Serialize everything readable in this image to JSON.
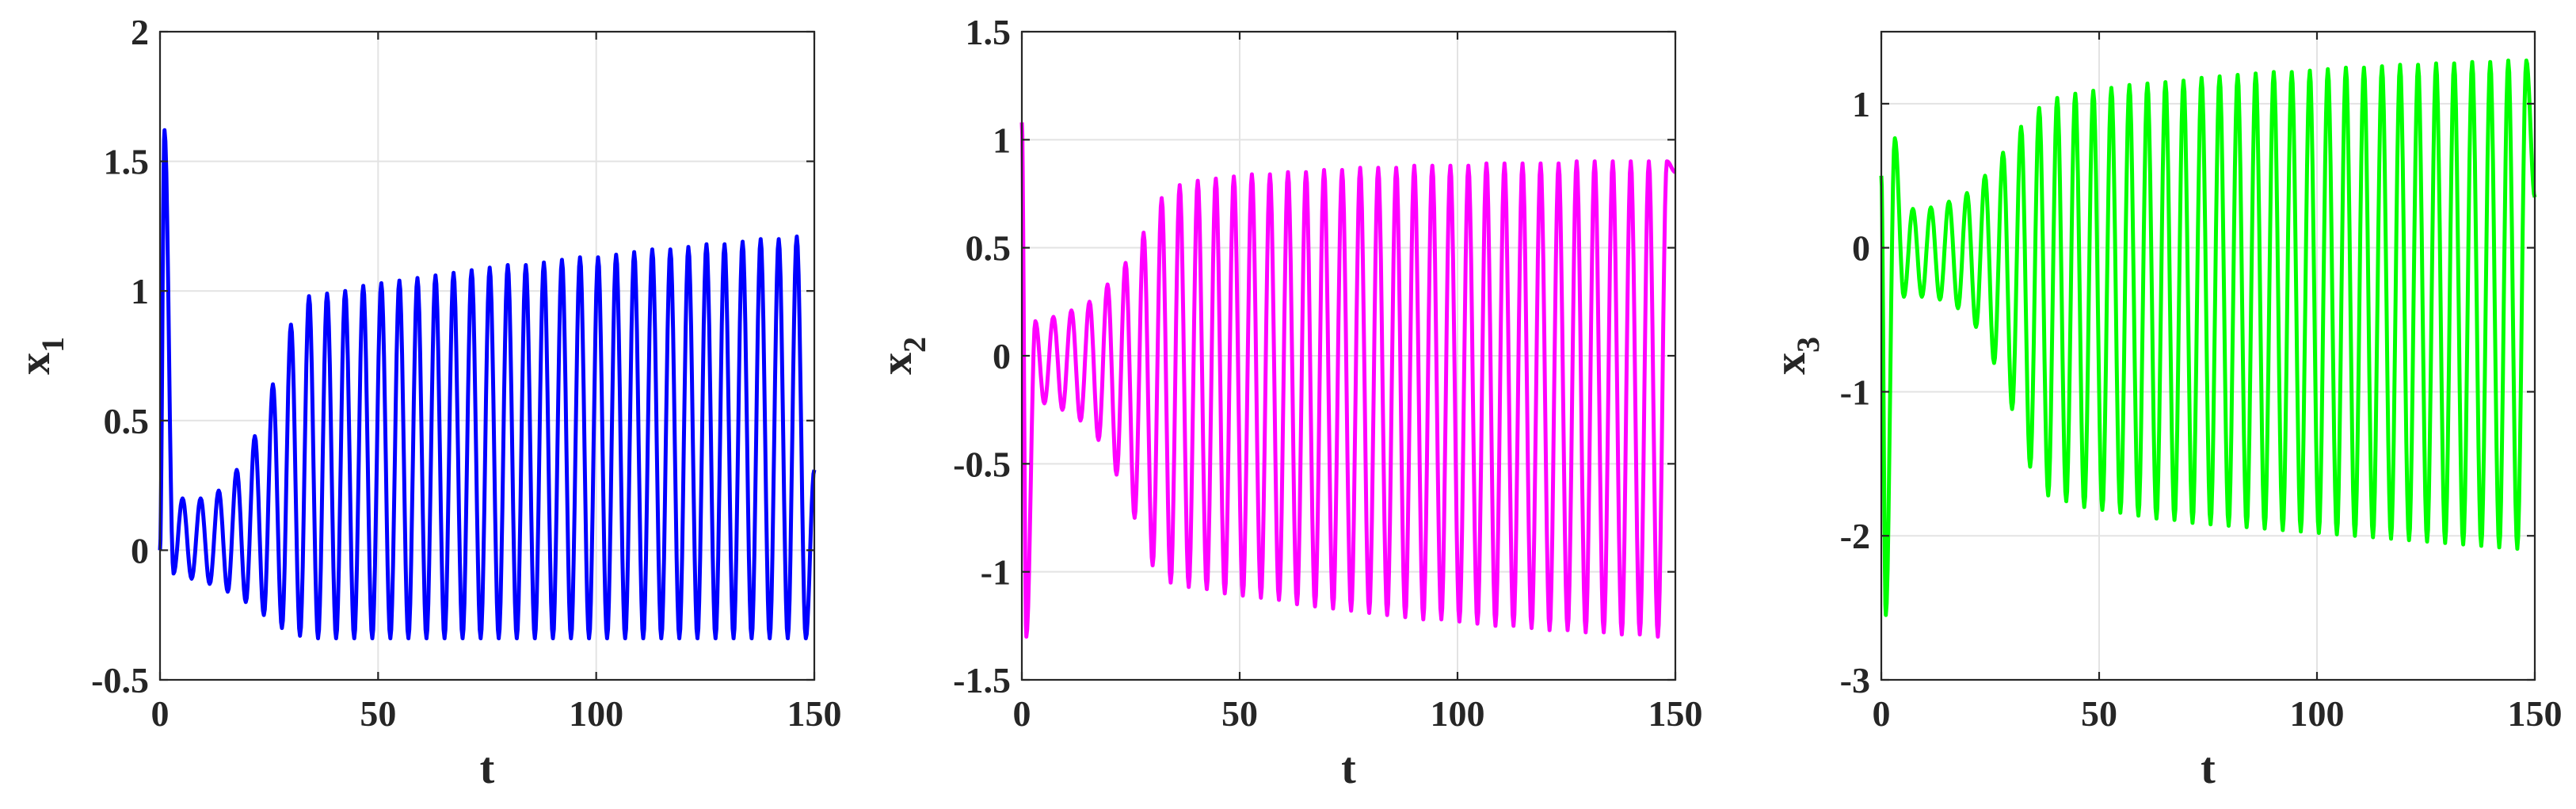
{
  "chart_data": [
    {
      "type": "line",
      "xlabel": "t",
      "ylabel": {
        "base": "x",
        "sub": "1"
      },
      "xlim": [
        0,
        150
      ],
      "ylim": [
        -0.5,
        2
      ],
      "xticks": [
        "0",
        "50",
        "100",
        "150"
      ],
      "yticks": [
        "-0.5",
        "0",
        "0.5",
        "1",
        "1.5",
        "2"
      ],
      "grid": true,
      "series": [
        {
          "color": "#0000ff",
          "t0": 0,
          "peaks": [
            1.62,
            0.2,
            0.2,
            0.23,
            0.31,
            0.44,
            0.64,
            0.87,
            0.98,
            0.99,
            1.0,
            1.02,
            1.03,
            1.04,
            1.05,
            1.06,
            1.07,
            1.08,
            1.09,
            1.1,
            1.1,
            1.11,
            1.12,
            1.13,
            1.13,
            1.14,
            1.15,
            1.16,
            1.16,
            1.17,
            1.18,
            1.18,
            1.19,
            1.2,
            1.2,
            1.21
          ],
          "troughs": [
            -0.09,
            -0.11,
            -0.13,
            -0.16,
            -0.2,
            -0.25,
            -0.3,
            -0.33,
            -0.34,
            -0.34,
            -0.34,
            -0.34,
            -0.34,
            -0.34,
            -0.34,
            -0.34,
            -0.34,
            -0.34,
            -0.34,
            -0.34,
            -0.34,
            -0.34,
            -0.34,
            -0.34,
            -0.34,
            -0.34,
            -0.34,
            -0.34,
            -0.34,
            -0.34,
            -0.34,
            -0.34,
            -0.34,
            -0.34,
            -0.34,
            -0.34
          ],
          "end": 0.31
        }
      ]
    },
    {
      "type": "line",
      "xlabel": "t",
      "ylabel": {
        "base": "x",
        "sub": "2"
      },
      "xlim": [
        0,
        150
      ],
      "ylim": [
        -1.5,
        1.5
      ],
      "xticks": [
        "0",
        "50",
        "100",
        "150"
      ],
      "yticks": [
        "-1.5",
        "-1",
        "-0.5",
        "0",
        "0.5",
        "1",
        "1.5"
      ],
      "grid": true,
      "series": [
        {
          "color": "#ff00ff",
          "t0": 1.08,
          "troughs": [
            -1.3,
            -0.22,
            -0.25,
            -0.3,
            -0.39,
            -0.55,
            -0.75,
            -0.97,
            -1.05,
            -1.07,
            -1.08,
            -1.1,
            -1.11,
            -1.12,
            -1.13,
            -1.15,
            -1.16,
            -1.17,
            -1.18,
            -1.19,
            -1.2,
            -1.21,
            -1.22,
            -1.22,
            -1.23,
            -1.24,
            -1.25,
            -1.25,
            -1.26,
            -1.27,
            -1.27,
            -1.28,
            -1.28,
            -1.29,
            -1.29,
            -1.3
          ],
          "peaks": [
            0.16,
            0.18,
            0.21,
            0.25,
            0.33,
            0.43,
            0.57,
            0.73,
            0.79,
            0.81,
            0.82,
            0.83,
            0.84,
            0.84,
            0.85,
            0.85,
            0.86,
            0.86,
            0.87,
            0.87,
            0.87,
            0.88,
            0.88,
            0.88,
            0.88,
            0.89,
            0.89,
            0.89,
            0.89,
            0.89,
            0.9,
            0.9,
            0.9,
            0.9,
            0.9,
            0.9
          ],
          "end": 0.85
        }
      ]
    },
    {
      "type": "line",
      "xlabel": "t",
      "ylabel": {
        "base": "x",
        "sub": "3"
      },
      "xlim": [
        0,
        150
      ],
      "ylim": [
        -3,
        1.5
      ],
      "xticks": [
        "0",
        "50",
        "100",
        "150"
      ],
      "yticks": [
        "-3",
        "-2",
        "-1",
        "0",
        "1"
      ],
      "grid": true,
      "series": [
        {
          "color": "#00ff00",
          "t0": 0.5,
          "troughs": [
            -2.55,
            -0.34,
            -0.34,
            -0.36,
            -0.42,
            -0.55,
            -0.8,
            -1.12,
            -1.52,
            -1.72,
            -1.76,
            -1.8,
            -1.82,
            -1.84,
            -1.86,
            -1.88,
            -1.89,
            -1.91,
            -1.92,
            -1.93,
            -1.94,
            -1.95,
            -1.96,
            -1.97,
            -1.98,
            -1.99,
            -2.0,
            -2.01,
            -2.02,
            -2.03,
            -2.04,
            -2.05,
            -2.06,
            -2.07,
            -2.08,
            -2.09
          ],
          "peaks": [
            0.76,
            0.27,
            0.28,
            0.32,
            0.38,
            0.5,
            0.66,
            0.84,
            0.97,
            1.04,
            1.07,
            1.09,
            1.11,
            1.13,
            1.14,
            1.15,
            1.16,
            1.18,
            1.19,
            1.2,
            1.21,
            1.22,
            1.22,
            1.23,
            1.24,
            1.25,
            1.25,
            1.26,
            1.27,
            1.27,
            1.28,
            1.28,
            1.29,
            1.29,
            1.3,
            1.3
          ],
          "end": 0.35
        }
      ]
    }
  ]
}
